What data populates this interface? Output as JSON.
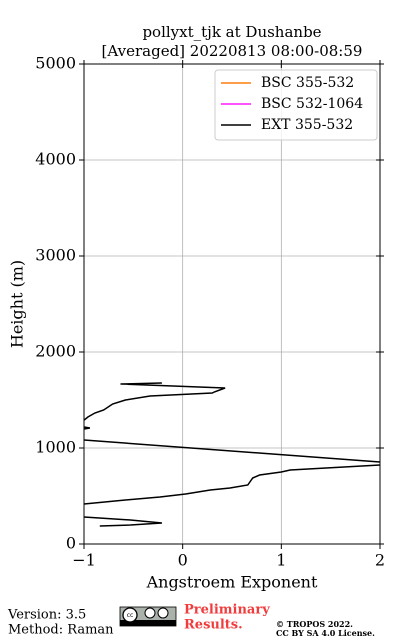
{
  "chart_data": {
    "type": "line",
    "title": [
      "pollyxt_tjk at Dushanbe",
      "[Averaged] 20220813 08:00-08:59"
    ],
    "xlabel": "Angstroem Exponent",
    "ylabel": "Height (m)",
    "xlim": [
      -1,
      2
    ],
    "xticks": [
      {
        "value": -1,
        "label": "−1"
      },
      0,
      1,
      2
    ],
    "ylim": [
      0,
      5000
    ],
    "yticks": [
      0,
      1000,
      2000,
      3000,
      4000,
      5000
    ],
    "grid": true,
    "legend": "upper right",
    "series": [
      {
        "name": "BSC 355-532",
        "color": "#ff7f0e",
        "x": [],
        "y": []
      },
      {
        "name": "BSC 532-1064",
        "color": "#ff1aff",
        "x": [],
        "y": []
      },
      {
        "name": "EXT 355-532",
        "color": "#000000",
        "x": [
          -0.21,
          -0.63,
          0.43,
          0.32,
          0.3,
          -0.33,
          -0.58,
          -0.71,
          -0.8,
          -0.89,
          -0.96,
          -1.0,
          null,
          -1.0,
          -0.94,
          -1.0,
          null,
          -1.0,
          2.0,
          null,
          2.0,
          1.09,
          1.0,
          0.78,
          0.71,
          0.66,
          0.48,
          0.28,
          0.03,
          -0.23,
          -0.58,
          -1.0,
          null,
          -1.0,
          -0.53,
          -0.21,
          -0.53,
          -0.84
        ],
        "y": [
          1677,
          1667,
          1625,
          1583,
          1573,
          1542,
          1500,
          1458,
          1396,
          1365,
          1323,
          1290,
          null,
          1219,
          1208,
          1198,
          null,
          1083,
          854,
          null,
          823,
          771,
          750,
          719,
          688,
          615,
          583,
          563,
          521,
          490,
          458,
          417,
          null,
          281,
          250,
          219,
          198,
          188
        ]
      }
    ]
  },
  "footer": {
    "version": "Version: 3.5",
    "method": "Method: Raman",
    "preliminary": [
      "Preliminary",
      "Results."
    ],
    "license": [
      "© TROPOS 2022.",
      "CC BY SA 4.0 License."
    ]
  }
}
